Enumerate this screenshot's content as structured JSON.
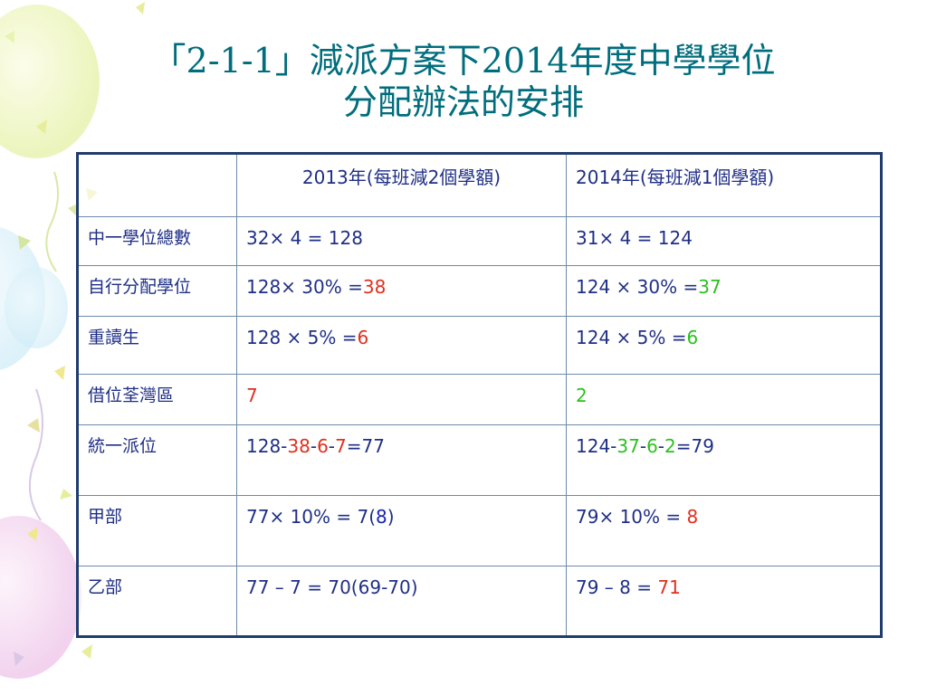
{
  "slide": {
    "title_line1": "「2-1-1」減派方案下2014年度中學學位",
    "title_line2": "分配辦法的安排"
  },
  "table": {
    "header": {
      "col1": "",
      "col2": "2013年(每班減2個學額)",
      "col3": "2014年(每班減1個學額)"
    },
    "rows": [
      {
        "label": "中一學位總數",
        "c2": [
          {
            "t": "32× 4 = 128",
            "c": "navy"
          }
        ],
        "c3": [
          {
            "t": "31× 4 = 124",
            "c": "navy"
          }
        ]
      },
      {
        "label": "自行分配學位",
        "c2": [
          {
            "t": "128× 30% =",
            "c": "navy"
          },
          {
            "t": "38",
            "c": "red"
          }
        ],
        "c3": [
          {
            "t": "124 × 30% =",
            "c": "navy"
          },
          {
            "t": "37",
            "c": "green"
          }
        ]
      },
      {
        "label": "重讀生",
        "c2": [
          {
            "t": "128 × 5% =",
            "c": "navy"
          },
          {
            "t": "6",
            "c": "red"
          }
        ],
        "c3": [
          {
            "t": "124 × 5% =",
            "c": "navy"
          },
          {
            "t": "6",
            "c": "green"
          }
        ]
      },
      {
        "label": "借位荃灣區",
        "c2": [
          {
            "t": "7",
            "c": "red"
          }
        ],
        "c3": [
          {
            "t": "2",
            "c": "green"
          }
        ]
      },
      {
        "label": "統一派位",
        "c2": [
          {
            "t": "128-",
            "c": "navy"
          },
          {
            "t": "38",
            "c": "red"
          },
          {
            "t": "-",
            "c": "navy"
          },
          {
            "t": "6",
            "c": "red"
          },
          {
            "t": "-",
            "c": "navy"
          },
          {
            "t": "7",
            "c": "red"
          },
          {
            "t": "=77",
            "c": "navy"
          }
        ],
        "c3": [
          {
            "t": "124-",
            "c": "navy"
          },
          {
            "t": "37",
            "c": "green"
          },
          {
            "t": "-",
            "c": "navy"
          },
          {
            "t": "6",
            "c": "green"
          },
          {
            "t": "-",
            "c": "navy"
          },
          {
            "t": "2",
            "c": "green"
          },
          {
            "t": "=79",
            "c": "navy"
          }
        ]
      },
      {
        "label": "甲部",
        "c2": [
          {
            "t": "77× 10% = 7(",
            "c": "navy"
          },
          {
            "t": "8",
            "c": "blue"
          },
          {
            "t": ")",
            "c": "navy"
          }
        ],
        "c3": [
          {
            "t": "79× 10% = ",
            "c": "navy"
          },
          {
            "t": "8",
            "c": "red"
          }
        ]
      },
      {
        "label": "乙部",
        "c2": [
          {
            "t": "77 – 7 = 70(69-70)",
            "c": "navy"
          }
        ],
        "c3": [
          {
            "t": "79 – 8 = ",
            "c": "navy"
          },
          {
            "t": "71",
            "c": "red"
          }
        ]
      }
    ]
  },
  "colors": {
    "title": "#006d7d",
    "text": "#1f2f86",
    "red": "#e0301e",
    "green": "#2cc01f",
    "blue": "#1a23b8",
    "table_border": "#1f3c6e"
  }
}
